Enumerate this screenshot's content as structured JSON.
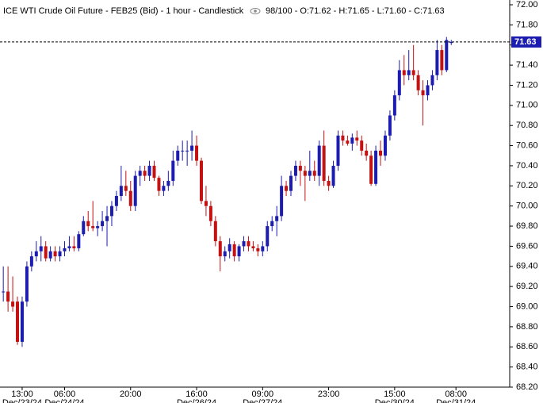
{
  "chart_data": {
    "type": "candlestick",
    "title": "ICE WTI Crude Oil Future - FEB25 (Bid) - 1 hour - Candlestick",
    "subtitle": "98/100 - O:71.62 - H:71.65 - L:71.60 - C:71.63",
    "up_color": "#1c1cb0",
    "down_color": "#c41212",
    "open": [
      69.15,
      69.15,
      69.05,
      69.05,
      68.65,
      69.05,
      69.4,
      69.5,
      69.55,
      69.6,
      69.48,
      69.55,
      69.5,
      69.55,
      69.58,
      69.6,
      69.58,
      69.72,
      69.85,
      69.8,
      69.78,
      69.8,
      69.85,
      69.9,
      70.0,
      70.1,
      70.2,
      70.15,
      70.0,
      70.3,
      70.35,
      70.3,
      70.4,
      70.28,
      70.15,
      70.2,
      70.25,
      70.45,
      70.55,
      70.55,
      70.55,
      70.6,
      70.45,
      70.05,
      70.0,
      69.85,
      69.65,
      69.5,
      69.55,
      69.62,
      69.5,
      69.6,
      69.65,
      69.6,
      69.58,
      69.55,
      69.6,
      69.8,
      69.85,
      69.9,
      70.2,
      70.15,
      70.3,
      70.4,
      70.35,
      70.3,
      70.35,
      70.3,
      70.6,
      70.25,
      70.2,
      70.4,
      70.7,
      70.65,
      70.62,
      70.68,
      70.65,
      70.55,
      70.5,
      70.22,
      70.55,
      70.5,
      70.7,
      70.9,
      71.1,
      71.35,
      71.3,
      71.35,
      71.3,
      71.15,
      71.1,
      71.2,
      71.3,
      71.55,
      71.35,
      71.62
    ],
    "high": [
      69.4,
      69.4,
      69.3,
      69.1,
      69.1,
      69.45,
      69.55,
      69.65,
      69.7,
      69.65,
      69.6,
      69.6,
      69.6,
      69.65,
      69.7,
      69.7,
      69.75,
      69.9,
      69.95,
      70.05,
      69.85,
      69.95,
      70.0,
      70.05,
      70.15,
      70.4,
      70.35,
      70.25,
      70.35,
      70.4,
      70.4,
      70.45,
      70.45,
      70.3,
      70.25,
      70.35,
      70.55,
      70.6,
      70.65,
      70.65,
      70.75,
      70.7,
      70.48,
      70.2,
      70.05,
      69.9,
      69.7,
      69.6,
      69.68,
      69.65,
      69.62,
      69.7,
      69.7,
      69.65,
      69.62,
      69.65,
      69.85,
      69.9,
      70.0,
      70.3,
      70.25,
      70.35,
      70.45,
      70.45,
      70.4,
      70.55,
      70.45,
      70.65,
      70.75,
      70.3,
      70.45,
      70.75,
      70.75,
      70.7,
      70.72,
      70.75,
      70.7,
      70.62,
      70.55,
      70.6,
      70.65,
      70.75,
      70.95,
      71.15,
      71.45,
      71.5,
      71.55,
      71.6,
      71.35,
      71.25,
      71.25,
      71.35,
      71.65,
      71.6,
      71.68,
      71.65
    ],
    "low": [
      69.05,
      68.95,
      68.95,
      68.62,
      68.6,
      69.0,
      69.35,
      69.45,
      69.45,
      69.45,
      69.45,
      69.45,
      69.45,
      69.5,
      69.55,
      69.55,
      69.55,
      69.7,
      69.75,
      69.75,
      69.7,
      69.75,
      69.6,
      69.8,
      69.95,
      70.05,
      70.1,
      69.95,
      69.95,
      70.2,
      70.25,
      70.25,
      70.25,
      70.1,
      70.1,
      70.15,
      70.2,
      70.4,
      70.45,
      70.4,
      70.45,
      70.4,
      70.02,
      69.9,
      69.8,
      69.6,
      69.35,
      69.45,
      69.48,
      69.45,
      69.45,
      69.55,
      69.55,
      69.55,
      69.5,
      69.5,
      69.55,
      69.75,
      69.7,
      69.85,
      70.1,
      70.1,
      70.25,
      70.2,
      70.05,
      70.25,
      70.25,
      70.2,
      70.2,
      70.15,
      70.18,
      70.35,
      70.6,
      70.6,
      70.55,
      70.6,
      70.5,
      70.45,
      70.2,
      70.2,
      70.4,
      70.45,
      70.65,
      70.85,
      71.05,
      71.2,
      71.25,
      71.25,
      71.1,
      70.8,
      71.05,
      71.15,
      71.25,
      71.3,
      71.33,
      71.6
    ],
    "close": [
      69.15,
      69.05,
      69.0,
      68.65,
      69.05,
      69.4,
      69.5,
      69.55,
      69.6,
      69.48,
      69.55,
      69.5,
      69.55,
      69.58,
      69.6,
      69.58,
      69.72,
      69.85,
      69.8,
      69.78,
      69.8,
      69.85,
      69.9,
      70.0,
      70.1,
      70.2,
      70.15,
      70.0,
      70.3,
      70.35,
      70.3,
      70.4,
      70.28,
      70.15,
      70.2,
      70.25,
      70.45,
      70.55,
      70.55,
      70.55,
      70.6,
      70.45,
      70.05,
      70.0,
      69.85,
      69.65,
      69.5,
      69.55,
      69.62,
      69.5,
      69.6,
      69.65,
      69.6,
      69.58,
      69.55,
      69.6,
      69.8,
      69.85,
      69.9,
      70.2,
      70.15,
      70.3,
      70.4,
      70.35,
      70.3,
      70.35,
      70.3,
      70.6,
      70.25,
      70.2,
      70.4,
      70.7,
      70.65,
      70.62,
      70.68,
      70.65,
      70.55,
      70.5,
      70.22,
      70.55,
      70.5,
      70.7,
      70.9,
      71.1,
      71.35,
      71.3,
      71.35,
      71.3,
      71.15,
      71.1,
      71.2,
      71.3,
      71.55,
      71.35,
      71.65,
      71.63
    ],
    "xlim": [
      -0.7,
      107.4
    ],
    "xticks": [
      {
        "value": 4,
        "label": "13:00",
        "date": "Dec/23/24"
      },
      {
        "value": 13,
        "label": "06:00",
        "date": "Dec/24/24"
      },
      {
        "value": 27,
        "label": "20:00"
      },
      {
        "value": 41,
        "label": "16:00",
        "date": "Dec/26/24"
      },
      {
        "value": 55,
        "label": "09:00",
        "date": "Dec/27/24"
      },
      {
        "value": 69,
        "label": "23:00"
      },
      {
        "value": 83,
        "label": "15:00",
        "date": "Dec/30/24"
      },
      {
        "value": 96,
        "label": "08:00",
        "date": "Dec/31/24"
      }
    ],
    "ylim": [
      68.2,
      72.0
    ],
    "yticks": [
      {
        "value": 68.2,
        "label": "68.20"
      },
      {
        "value": 68.4,
        "label": "68.40"
      },
      {
        "value": 68.6,
        "label": "68.60"
      },
      {
        "value": 68.8,
        "label": "68.80"
      },
      {
        "value": 69.0,
        "label": "69.00"
      },
      {
        "value": 69.2,
        "label": "69.20"
      },
      {
        "value": 69.4,
        "label": "69.40"
      },
      {
        "value": 69.6,
        "label": "69.60"
      },
      {
        "value": 69.8,
        "label": "69.80"
      },
      {
        "value": 70.0,
        "label": "70.00"
      },
      {
        "value": 70.2,
        "label": "70.20"
      },
      {
        "value": 70.4,
        "label": "70.40"
      },
      {
        "value": 70.6,
        "label": "70.60"
      },
      {
        "value": 70.8,
        "label": "70.80"
      },
      {
        "value": 71.0,
        "label": "71.00"
      },
      {
        "value": 71.2,
        "label": "71.20"
      },
      {
        "value": 71.4,
        "label": "71.40"
      },
      {
        "value": 71.6,
        "label": "71.60"
      },
      {
        "value": 71.8,
        "label": "71.80"
      },
      {
        "value": 72.0,
        "label": "72.00"
      }
    ],
    "last_price": {
      "value": 71.63,
      "label": "71.63"
    },
    "grid": false
  }
}
